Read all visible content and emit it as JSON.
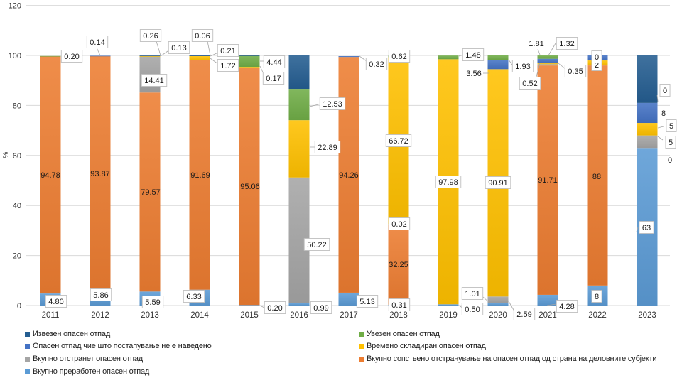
{
  "chart_data": {
    "type": "bar",
    "stacked": true,
    "title": "",
    "xlabel": "",
    "ylabel": "%",
    "ylim": [
      0,
      120
    ],
    "yticks": [
      "0",
      "20",
      "40",
      "60",
      "80",
      "100",
      "120"
    ],
    "grid": true,
    "legend_position": "bottom",
    "categories": [
      "2011",
      "2012",
      "2013",
      "2014",
      "2015",
      "2016",
      "2017",
      "2018",
      "2019",
      "2020",
      "2021",
      "2022",
      "2023"
    ],
    "series": [
      {
        "name": "Вкупно преработен опасен отпад",
        "color": "#5B9BD5",
        "values": [
          4.8,
          5.86,
          5.59,
          6.33,
          0.2,
          0.99,
          5.13,
          0.31,
          0.5,
          1.01,
          4.28,
          8,
          63
        ],
        "labels": [
          "4.80",
          "5.86",
          "5.59",
          "6.33",
          "0.20",
          "0.99",
          "5.13",
          "0.31",
          "0.50",
          "1.01",
          "4.28",
          "8",
          "63"
        ]
      },
      {
        "name": "Вкупно сопствено отстранување на опасен отпад од страна на деловните субјекти",
        "color": "#ED7D31",
        "values": [
          94.78,
          93.87,
          79.57,
          91.69,
          95.06,
          0,
          94.26,
          32.25,
          0,
          0,
          91.71,
          88,
          0
        ],
        "labels": [
          "94.78",
          "93.87",
          "79.57",
          "91.69",
          "95.06",
          null,
          "94.26",
          "32.25",
          null,
          null,
          "91.71",
          "88",
          "0"
        ]
      },
      {
        "name": "Вкупно отстранет опасен отпад",
        "color": "#A5A5A5",
        "values": [
          0,
          0,
          14.41,
          0,
          0,
          50.22,
          0,
          0.02,
          0,
          2.59,
          0.52,
          0,
          5
        ],
        "labels": [
          null,
          null,
          "14.41",
          null,
          null,
          "50.22",
          null,
          "0.02",
          null,
          "2.59",
          "0.52",
          null,
          "5"
        ]
      },
      {
        "name": "Времено складиран опасен отпад",
        "color": "#FFC000",
        "values": [
          0,
          0,
          0.13,
          1.72,
          0.17,
          22.89,
          0,
          66.72,
          97.98,
          90.91,
          0.35,
          2,
          5
        ],
        "labels": [
          null,
          null,
          "0.13",
          "1.72",
          "0.17",
          "22.89",
          null,
          "66.72",
          "97.98",
          "90.91",
          "0.35",
          "2",
          "5"
        ]
      },
      {
        "name": "Опасен отпад чие што постапување не е наведено",
        "color": "#4472C4",
        "values": [
          0,
          0.14,
          0,
          0.21,
          0,
          0,
          0.32,
          0,
          0,
          3.56,
          1.81,
          2,
          8
        ],
        "labels": [
          null,
          "0.14",
          null,
          "0.21",
          null,
          null,
          "0.32",
          null,
          null,
          "3.56",
          "1.81",
          null,
          "8"
        ]
      },
      {
        "name": "Увезен опасен отпад",
        "color": "#70AD47",
        "values": [
          0.2,
          0,
          0,
          0,
          4.44,
          12.53,
          0,
          0.62,
          1.48,
          1.93,
          1.32,
          0,
          0
        ],
        "labels": [
          "0.20",
          null,
          null,
          null,
          "4.44",
          "12.53",
          null,
          "0.62",
          "1.48",
          "1.93",
          "1.32",
          "0",
          "0"
        ]
      },
      {
        "name": "Извезен опасен отпад",
        "color": "#255E91",
        "values": [
          0,
          0,
          0.26,
          0.06,
          0.13,
          13.37,
          0,
          0,
          0,
          0,
          0,
          0,
          19
        ],
        "labels": [
          null,
          null,
          "0.26",
          "0.06",
          null,
          null,
          null,
          null,
          null,
          null,
          null,
          null,
          null
        ]
      }
    ]
  }
}
